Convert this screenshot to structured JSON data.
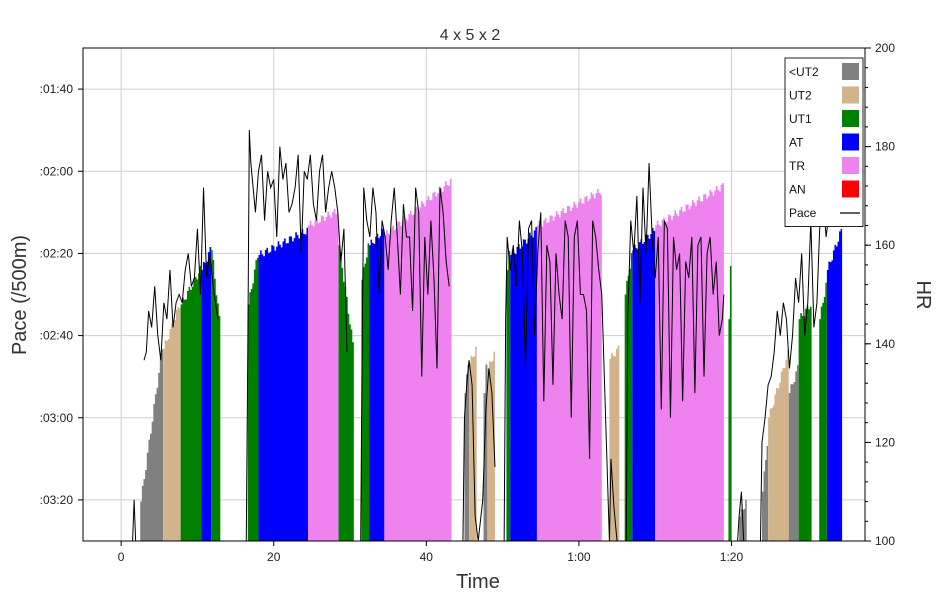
{
  "chart_data": {
    "type": "area",
    "title": "4 x 5 x 2",
    "xlabel": "Time",
    "ylabel": "Pace (/500m)",
    "y2label": "HR",
    "x_unit": "minutes",
    "xlim": [
      -5,
      97.5
    ],
    "ylim_pace_seconds": [
      215,
      155
    ],
    "ylim_hr": [
      100,
      200
    ],
    "x_ticks": [
      {
        "value": 0,
        "label": "0"
      },
      {
        "value": 20,
        "label": "20"
      },
      {
        "value": 40,
        "label": "40"
      },
      {
        "value": 60,
        "label": "1:00"
      },
      {
        "value": 80,
        "label": "1:20"
      }
    ],
    "y_ticks": [
      {
        "value": 160,
        "label": ":01:40"
      },
      {
        "value": 170,
        "label": ":02:00"
      },
      {
        "value": 180,
        "label": ":02:20"
      },
      {
        "value": 190,
        "label": ":02:40"
      },
      {
        "value": 200,
        "label": ":03:00"
      },
      {
        "value": 210,
        "label": ":03:20"
      }
    ],
    "y2_ticks": [
      {
        "value": 100,
        "label": "100"
      },
      {
        "value": 120,
        "label": "120"
      },
      {
        "value": 140,
        "label": "140"
      },
      {
        "value": 160,
        "label": "160"
      },
      {
        "value": 180,
        "label": "180"
      },
      {
        "value": 200,
        "label": "200"
      }
    ],
    "grid": true,
    "legend_position": "top-right",
    "legend": [
      {
        "label": "<UT2",
        "color": "#808080",
        "kind": "patch"
      },
      {
        "label": "UT2",
        "color": "#d2b48c",
        "kind": "patch"
      },
      {
        "label": "UT1",
        "color": "#008000",
        "kind": "patch"
      },
      {
        "label": "AT",
        "color": "#0000ff",
        "kind": "patch"
      },
      {
        "label": "TR",
        "color": "#ee82ee",
        "kind": "patch"
      },
      {
        "label": "AN",
        "color": "#ff0000",
        "kind": "patch"
      },
      {
        "label": "Pace",
        "color": "#000000",
        "kind": "line"
      }
    ],
    "zone_bands": [
      {
        "zone": "<UT2",
        "color": "#808080",
        "x_start": 2.5,
        "x_end": 5.5,
        "hr_start": 108,
        "hr_end": 139
      },
      {
        "zone": "UT2",
        "color": "#d2b48c",
        "x_start": 5.5,
        "x_end": 7.8,
        "hr_start": 139,
        "hr_end": 148
      },
      {
        "zone": "UT1",
        "color": "#008000",
        "x_start": 7.8,
        "x_end": 10.5,
        "hr_start": 148,
        "hr_end": 155
      },
      {
        "zone": "AT",
        "color": "#0000ff",
        "x_start": 10.5,
        "x_end": 11.8,
        "hr_start": 155,
        "hr_end": 159
      },
      {
        "zone": "UT1",
        "color": "#008000",
        "x_start": 11.8,
        "x_end": 13.0,
        "hr_start": 159,
        "hr_end": 145
      },
      {
        "zone": "UT1",
        "color": "#008000",
        "x_start": 16.6,
        "x_end": 18.0,
        "hr_start": 148,
        "hr_end": 158
      },
      {
        "zone": "AT",
        "color": "#0000ff",
        "x_start": 18.0,
        "x_end": 24.5,
        "hr_start": 158,
        "hr_end": 163
      },
      {
        "zone": "TR",
        "color": "#ee82ee",
        "x_start": 24.5,
        "x_end": 28.5,
        "hr_start": 164,
        "hr_end": 167
      },
      {
        "zone": "UT1",
        "color": "#008000",
        "x_start": 28.5,
        "x_end": 30.5,
        "hr_start": 160,
        "hr_end": 140
      },
      {
        "zone": "UT1",
        "color": "#008000",
        "x_start": 31.5,
        "x_end": 32.5,
        "hr_start": 153,
        "hr_end": 160
      },
      {
        "zone": "AT",
        "color": "#0000ff",
        "x_start": 32.5,
        "x_end": 34.5,
        "hr_start": 160,
        "hr_end": 163
      },
      {
        "zone": "TR",
        "color": "#ee82ee",
        "x_start": 34.5,
        "x_end": 43.3,
        "hr_start": 162,
        "hr_end": 173
      },
      {
        "zone": "<UT2",
        "color": "#808080",
        "x_start": 45.0,
        "x_end": 45.6,
        "hr_start": 130,
        "hr_end": 136
      },
      {
        "zone": "UT2",
        "color": "#d2b48c",
        "x_start": 45.6,
        "x_end": 46.6,
        "hr_start": 136,
        "hr_end": 139
      },
      {
        "zone": "<UT2",
        "color": "#808080",
        "x_start": 47.5,
        "x_end": 48.0,
        "hr_start": 130,
        "hr_end": 135
      },
      {
        "zone": "UT2",
        "color": "#d2b48c",
        "x_start": 48.0,
        "x_end": 49.0,
        "hr_start": 135,
        "hr_end": 138
      },
      {
        "zone": "UT1",
        "color": "#008000",
        "x_start": 50.5,
        "x_end": 51.0,
        "hr_start": 155,
        "hr_end": 158
      },
      {
        "zone": "AT",
        "color": "#0000ff",
        "x_start": 51.0,
        "x_end": 54.5,
        "hr_start": 158,
        "hr_end": 163
      },
      {
        "zone": "TR",
        "color": "#ee82ee",
        "x_start": 54.5,
        "x_end": 63.0,
        "hr_start": 164,
        "hr_end": 171
      },
      {
        "zone": "UT2",
        "color": "#d2b48c",
        "x_start": 64.0,
        "x_end": 65.3,
        "hr_start": 137,
        "hr_end": 139
      },
      {
        "zone": "UT1",
        "color": "#008000",
        "x_start": 66.0,
        "x_end": 67.0,
        "hr_start": 150,
        "hr_end": 158
      },
      {
        "zone": "AT",
        "color": "#0000ff",
        "x_start": 67.0,
        "x_end": 70.0,
        "hr_start": 159,
        "hr_end": 163
      },
      {
        "zone": "TR",
        "color": "#ee82ee",
        "x_start": 70.0,
        "x_end": 79.0,
        "hr_start": 164,
        "hr_end": 172
      },
      {
        "zone": "UT1",
        "color": "#008000",
        "x_start": 79.6,
        "x_end": 80.0,
        "hr_start": 145,
        "hr_end": 155
      },
      {
        "zone": "<UT2",
        "color": "#808080",
        "x_start": 81.0,
        "x_end": 82.0,
        "hr_start": 105,
        "hr_end": 108
      },
      {
        "zone": "<UT2",
        "color": "#808080",
        "x_start": 84.0,
        "x_end": 84.8,
        "hr_start": 110,
        "hr_end": 120
      },
      {
        "zone": "UT2",
        "color": "#d2b48c",
        "x_start": 84.8,
        "x_end": 87.5,
        "hr_start": 125,
        "hr_end": 138
      },
      {
        "zone": "<UT2",
        "color": "#808080",
        "x_start": 87.5,
        "x_end": 88.8,
        "hr_start": 130,
        "hr_end": 135
      },
      {
        "zone": "UT1",
        "color": "#008000",
        "x_start": 88.8,
        "x_end": 90.5,
        "hr_start": 145,
        "hr_end": 148
      },
      {
        "zone": "UT1",
        "color": "#008000",
        "x_start": 91.5,
        "x_end": 92.5,
        "hr_start": 145,
        "hr_end": 152
      },
      {
        "zone": "AT",
        "color": "#0000ff",
        "x_start": 92.5,
        "x_end": 94.5,
        "hr_start": 155,
        "hr_end": 163
      }
    ],
    "pace_series": {
      "name": "Pace",
      "color": "#000000",
      "points": [
        [
          1.5,
          215
        ],
        [
          1.7,
          210
        ],
        [
          1.9,
          215
        ],
        [
          3.0,
          193
        ],
        [
          3.3,
          192
        ],
        [
          3.6,
          187
        ],
        [
          4.0,
          189
        ],
        [
          4.4,
          184
        ],
        [
          4.8,
          190
        ],
        [
          5.2,
          193
        ],
        [
          5.6,
          186
        ],
        [
          6.0,
          188
        ],
        [
          6.4,
          182
        ],
        [
          6.8,
          189
        ],
        [
          7.2,
          186
        ],
        [
          7.6,
          185
        ],
        [
          8.0,
          186
        ],
        [
          8.4,
          182
        ],
        [
          8.8,
          180
        ],
        [
          9.2,
          184
        ],
        [
          9.6,
          183
        ],
        [
          10.0,
          177
        ],
        [
          10.4,
          185
        ],
        [
          10.8,
          172
        ],
        [
          11.2,
          183
        ],
        [
          11.6,
          180
        ],
        [
          12.2,
          185
        ],
        [
          12.7,
          188
        ],
        [
          16.4,
          215
        ],
        [
          16.6,
          192
        ],
        [
          16.8,
          165
        ],
        [
          17.0,
          169
        ],
        [
          17.3,
          172
        ],
        [
          17.6,
          175
        ],
        [
          18.0,
          170
        ],
        [
          18.4,
          168
        ],
        [
          18.8,
          176
        ],
        [
          19.2,
          170
        ],
        [
          19.6,
          172
        ],
        [
          20.0,
          171
        ],
        [
          20.4,
          178
        ],
        [
          20.8,
          167
        ],
        [
          21.2,
          171
        ],
        [
          21.6,
          169
        ],
        [
          22.0,
          175
        ],
        [
          22.4,
          174
        ],
        [
          22.8,
          172
        ],
        [
          23.2,
          168
        ],
        [
          23.6,
          180
        ],
        [
          24.0,
          170
        ],
        [
          24.4,
          171
        ],
        [
          24.8,
          168
        ],
        [
          25.2,
          174
        ],
        [
          25.6,
          176
        ],
        [
          26.0,
          170
        ],
        [
          26.4,
          168
        ],
        [
          26.8,
          175
        ],
        [
          27.2,
          172
        ],
        [
          27.6,
          170
        ],
        [
          28.0,
          172
        ],
        [
          28.4,
          175
        ],
        [
          28.8,
          181
        ],
        [
          29.2,
          177
        ],
        [
          29.6,
          192
        ],
        [
          31.4,
          215
        ],
        [
          31.6,
          190
        ],
        [
          31.8,
          172
        ],
        [
          32.2,
          176
        ],
        [
          32.6,
          178
        ],
        [
          33.0,
          172
        ],
        [
          33.4,
          175
        ],
        [
          33.8,
          185
        ],
        [
          34.2,
          176
        ],
        [
          34.6,
          178
        ],
        [
          35.0,
          182
        ],
        [
          35.4,
          176
        ],
        [
          35.8,
          172
        ],
        [
          36.2,
          178
        ],
        [
          36.6,
          185
        ],
        [
          37.0,
          174
        ],
        [
          37.4,
          178
        ],
        [
          37.8,
          178
        ],
        [
          38.2,
          187
        ],
        [
          38.6,
          172
        ],
        [
          39.0,
          175
        ],
        [
          39.4,
          195
        ],
        [
          39.8,
          178
        ],
        [
          40.2,
          185
        ],
        [
          40.6,
          176
        ],
        [
          41.0,
          183
        ],
        [
          41.4,
          194
        ],
        [
          41.8,
          172
        ],
        [
          42.2,
          175
        ],
        [
          42.6,
          181
        ],
        [
          43.0,
          184
        ],
        [
          44.8,
          215
        ],
        [
          45.0,
          200
        ],
        [
          45.3,
          196
        ],
        [
          45.6,
          193
        ],
        [
          46.0,
          196
        ],
        [
          46.4,
          212
        ],
        [
          46.8,
          215
        ],
        [
          47.4,
          210
        ],
        [
          47.8,
          199
        ],
        [
          48.2,
          194
        ],
        [
          48.6,
          197
        ],
        [
          49.0,
          206
        ],
        [
          50.2,
          215
        ],
        [
          50.4,
          188
        ],
        [
          50.6,
          178
        ],
        [
          51.0,
          182
        ],
        [
          51.4,
          179
        ],
        [
          51.8,
          184
        ],
        [
          52.2,
          176
        ],
        [
          52.6,
          180
        ],
        [
          53.0,
          194
        ],
        [
          53.4,
          177
        ],
        [
          53.8,
          176
        ],
        [
          54.2,
          190
        ],
        [
          54.6,
          180
        ],
        [
          55.0,
          175
        ],
        [
          55.4,
          198
        ],
        [
          55.8,
          179
        ],
        [
          56.2,
          181
        ],
        [
          56.6,
          196
        ],
        [
          57.0,
          180
        ],
        [
          57.4,
          185
        ],
        [
          57.8,
          188
        ],
        [
          58.2,
          176
        ],
        [
          58.6,
          178
        ],
        [
          59.0,
          200
        ],
        [
          59.4,
          178
        ],
        [
          59.8,
          176
        ],
        [
          60.2,
          185
        ],
        [
          60.6,
          185
        ],
        [
          61.0,
          187
        ],
        [
          61.4,
          205
        ],
        [
          61.8,
          176
        ],
        [
          62.2,
          178
        ],
        [
          62.6,
          182
        ],
        [
          63.0,
          185
        ],
        [
          64.0,
          215
        ],
        [
          64.2,
          205
        ],
        [
          64.6,
          211
        ],
        [
          65.0,
          215
        ],
        [
          66.2,
          215
        ],
        [
          66.4,
          188
        ],
        [
          66.8,
          176
        ],
        [
          67.2,
          180
        ],
        [
          67.6,
          173
        ],
        [
          68.0,
          186
        ],
        [
          68.4,
          172
        ],
        [
          68.8,
          180
        ],
        [
          69.2,
          169
        ],
        [
          69.6,
          178
        ],
        [
          70.0,
          183
        ],
        [
          70.4,
          178
        ],
        [
          70.8,
          199
        ],
        [
          71.2,
          176
        ],
        [
          71.6,
          177
        ],
        [
          72.0,
          200
        ],
        [
          72.4,
          178
        ],
        [
          72.8,
          182
        ],
        [
          73.2,
          180
        ],
        [
          73.6,
          198
        ],
        [
          74.0,
          181
        ],
        [
          74.4,
          183
        ],
        [
          74.8,
          178
        ],
        [
          75.2,
          197
        ],
        [
          75.6,
          179
        ],
        [
          76.0,
          178
        ],
        [
          76.4,
          195
        ],
        [
          76.8,
          180
        ],
        [
          77.2,
          178
        ],
        [
          77.6,
          185
        ],
        [
          78.0,
          181
        ],
        [
          78.4,
          190
        ],
        [
          78.8,
          188
        ],
        [
          79.0,
          185
        ],
        [
          80.8,
          215
        ],
        [
          81.0,
          212
        ],
        [
          81.3,
          209
        ],
        [
          81.6,
          215
        ],
        [
          83.8,
          215
        ],
        [
          84.0,
          203
        ],
        [
          84.4,
          200
        ],
        [
          84.8,
          196
        ],
        [
          85.2,
          195
        ],
        [
          85.6,
          192
        ],
        [
          86.0,
          187
        ],
        [
          86.4,
          190
        ],
        [
          86.8,
          186
        ],
        [
          87.2,
          188
        ],
        [
          87.6,
          194
        ],
        [
          88.0,
          190
        ],
        [
          88.4,
          183
        ],
        [
          88.8,
          186
        ],
        [
          89.2,
          180
        ],
        [
          89.6,
          190
        ],
        [
          90.0,
          186
        ],
        [
          90.4,
          176
        ],
        [
          90.8,
          189
        ],
        [
          91.2,
          186
        ],
        [
          91.6,
          176
        ],
        [
          92.0,
          173
        ],
        [
          92.4,
          178
        ],
        [
          92.8,
          175
        ],
        [
          93.2,
          170
        ],
        [
          93.6,
          176
        ],
        [
          94.0,
          173
        ],
        [
          94.4,
          175
        ]
      ]
    }
  }
}
